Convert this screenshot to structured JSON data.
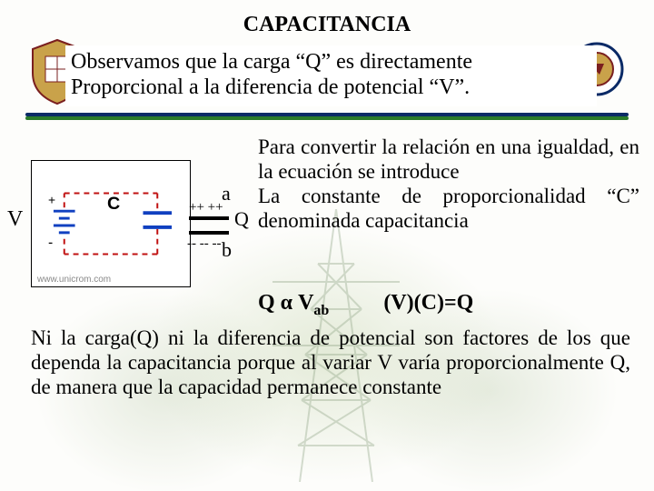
{
  "title": "CAPACITANCIA",
  "highlight": {
    "line1": "Observamos que la carga “Q”  es directamente",
    "line2": "Proporcional a la diferencia de potencial “V”."
  },
  "rule": {
    "top_color": "#0a2a66",
    "bottom_color": "#2a7a2a"
  },
  "para_right": "Para convertir la relación en una igualdad, en la ecuación se introduce\nLa constante de proporcionalidad “C” denominada capacitancia",
  "formula": {
    "left_pre": "Q α V",
    "left_sub": "ab",
    "right": "(V)(C)=Q"
  },
  "para_bottom": "Ni la carga(Q) ni la diferencia de potencial son factores de los que dependa la capacitancia porque al variar V varía proporcionalmente Q, de manera que la capacidad permanece constante",
  "circuit": {
    "label_c": "C",
    "plus": "+",
    "minus": "-",
    "credit": "www.unicrom.com",
    "wire_color": "#c01010",
    "battery_color": "#1040c0",
    "cap_color": "#1040c0"
  },
  "side_cap": {
    "a": "a",
    "b": "b",
    "q": "Q",
    "plus_row": "++ ++",
    "minus_row": "-- -- --"
  },
  "v_label": "V",
  "crest_colors": {
    "shield": "#c9a24a",
    "accent": "#7a1f1f",
    "ring": "#0a2a66"
  },
  "background": {
    "page": "#fdfdfb",
    "wash": "#b0c090",
    "pylon_color": "#8aa080"
  }
}
